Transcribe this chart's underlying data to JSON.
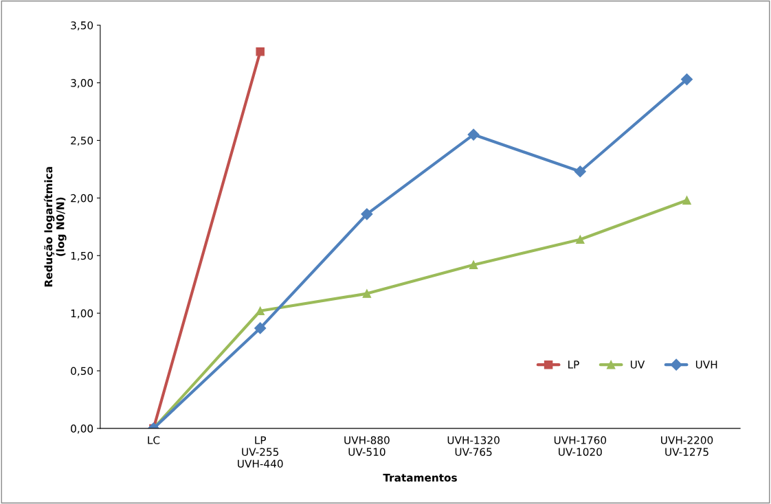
{
  "chart_data": {
    "type": "line",
    "xlabel": "Tratamentos",
    "ylabel": "Redução logarítmica\n(log N0/N)",
    "categories": [
      "LC",
      "LP\nUV-255\nUVH-440",
      "UVH-880\nUV-510",
      "UVH-1320\nUV-765",
      "UVH-1760\nUV-1020",
      "UVH-2200\nUV-1275"
    ],
    "series": [
      {
        "name": "LP",
        "color": "#c0504d",
        "marker": "square",
        "values": [
          0,
          3.27,
          null,
          null,
          null,
          null
        ]
      },
      {
        "name": "UV",
        "color": "#9bbb59",
        "marker": "triangle",
        "values": [
          0,
          1.02,
          1.17,
          1.42,
          1.64,
          1.98
        ]
      },
      {
        "name": "UVH",
        "color": "#4f81bd",
        "marker": "diamond",
        "values": [
          0,
          0.87,
          1.86,
          2.55,
          2.23,
          3.03
        ]
      }
    ],
    "ylim": [
      0,
      3.5
    ],
    "yticks": [
      {
        "value": 0,
        "label": "0,00"
      },
      {
        "value": 0.5,
        "label": "0,50"
      },
      {
        "value": 1,
        "label": "1,00"
      },
      {
        "value": 1.5,
        "label": "1,50"
      },
      {
        "value": 2,
        "label": "2,00"
      },
      {
        "value": 2.5,
        "label": "2,50"
      },
      {
        "value": 3,
        "label": "3,00"
      },
      {
        "value": 3.5,
        "label": "3,50"
      }
    ],
    "grid": false,
    "legend": "bottom right",
    "line_style": "solid"
  }
}
